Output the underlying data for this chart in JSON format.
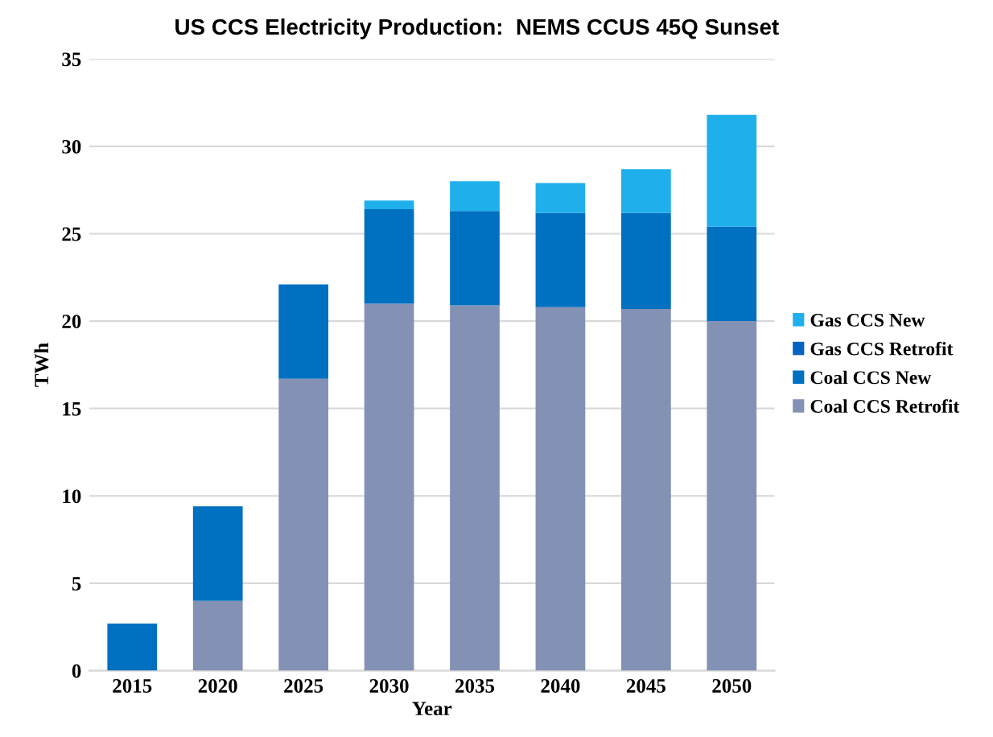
{
  "chart_data": {
    "type": "bar",
    "title": "US CCS Electricity Production:  NEMS CCUS 45Q Sunset",
    "xlabel": "Year",
    "ylabel": "TWh",
    "categories": [
      "2015",
      "2020",
      "2025",
      "2030",
      "2035",
      "2040",
      "2045",
      "2050"
    ],
    "stacked": true,
    "series": [
      {
        "name": "Coal CCS Retrofit",
        "color": "#8391b4",
        "values": [
          0,
          4.0,
          16.7,
          21.0,
          20.9,
          20.8,
          20.7,
          20.0
        ]
      },
      {
        "name": "Coal CCS New",
        "color": "#0070c0",
        "values": [
          2.7,
          5.4,
          5.4,
          5.4,
          5.4,
          5.4,
          5.5,
          5.4
        ]
      },
      {
        "name": "Gas CCS Retrofit",
        "color": "#0563c1",
        "values": [
          0,
          0,
          0,
          0,
          0,
          0,
          0,
          0
        ]
      },
      {
        "name": "Gas CCS New",
        "color": "#1fb0ec",
        "values": [
          0,
          0,
          0,
          0.5,
          1.7,
          1.7,
          2.5,
          6.4
        ]
      }
    ],
    "ylim": [
      0,
      35
    ],
    "yticks": [
      0,
      5,
      10,
      15,
      20,
      25,
      30,
      35
    ],
    "grid": "y",
    "legend": "right"
  }
}
